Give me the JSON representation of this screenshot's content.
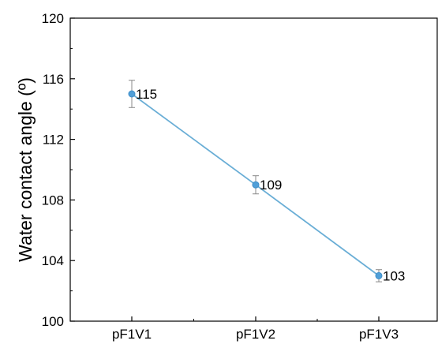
{
  "chart_data": {
    "type": "line",
    "categories": [
      "pF1V1",
      "pF1V2",
      "pF1V3"
    ],
    "series": [
      {
        "values": [
          115,
          109,
          103
        ],
        "error": [
          0.9,
          0.6,
          0.4
        ],
        "color": "#6aaed6",
        "marker_color": "#4f9fd8"
      }
    ],
    "data_labels": [
      "115",
      "109",
      "103"
    ],
    "title": "",
    "xlabel": "",
    "ylabel": "Water contact angle (º)",
    "ylim": [
      100,
      120
    ],
    "yticks": [
      100,
      104,
      108,
      112,
      116,
      120
    ],
    "ytick_labels": [
      "100",
      "104",
      "108",
      "112",
      "116",
      "120"
    ],
    "grid": false
  }
}
